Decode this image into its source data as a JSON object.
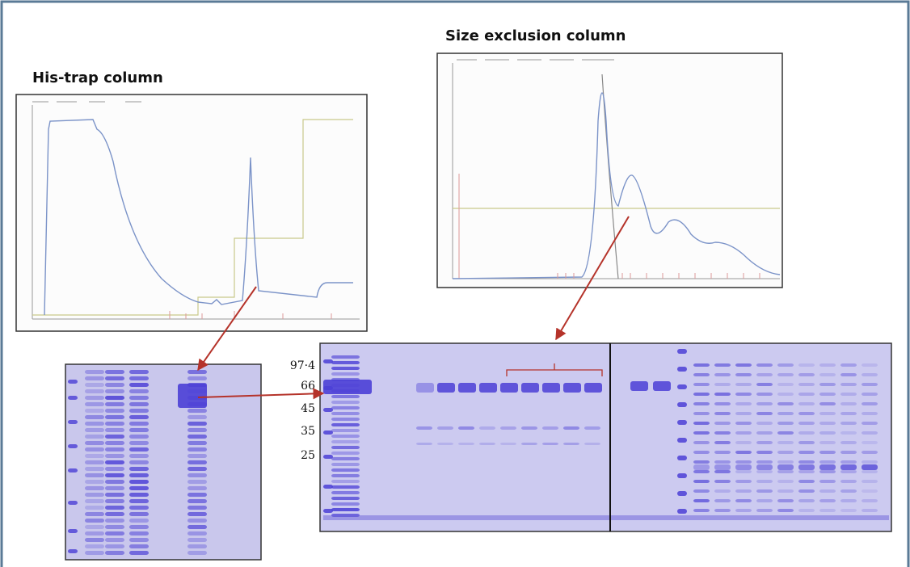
{
  "panels": {
    "his_trap": {
      "title": "His-trap column"
    },
    "size_exclusion": {
      "title": "Size exclusion column"
    }
  },
  "gel": {
    "markers": [
      "97·4",
      "66",
      "45",
      "35",
      "25"
    ]
  }
}
